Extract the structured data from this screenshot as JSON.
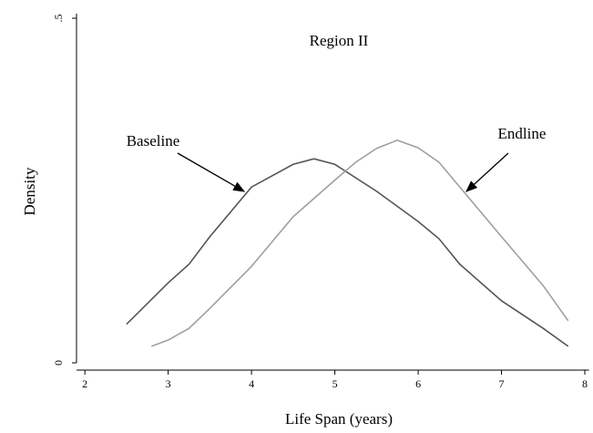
{
  "chart_data": {
    "type": "line",
    "title": "Region II",
    "xlabel": "Life Span (years)",
    "ylabel": "Density",
    "xlim": [
      1.9,
      8.05
    ],
    "ylim": [
      0,
      0.5
    ],
    "xticks": [
      2,
      3,
      4,
      5,
      6,
      7,
      8
    ],
    "yticks": [
      0,
      {
        "value": 0.5,
        "label": ".5"
      }
    ],
    "annotations": [
      "Baseline",
      "Endline"
    ],
    "series": [
      {
        "name": "Baseline",
        "color": "#555555",
        "x": [
          2.5,
          3.0,
          3.25,
          3.5,
          4.0,
          4.5,
          4.75,
          5.0,
          5.5,
          6.0,
          6.25,
          6.5,
          7.0,
          7.5,
          7.8
        ],
        "values": [
          0.056,
          0.116,
          0.143,
          0.183,
          0.255,
          0.288,
          0.296,
          0.288,
          0.249,
          0.205,
          0.18,
          0.143,
          0.09,
          0.05,
          0.024
        ]
      },
      {
        "name": "Endline",
        "color": "#a0a0a0",
        "x": [
          2.8,
          3.0,
          3.25,
          3.5,
          4.0,
          4.5,
          5.0,
          5.25,
          5.5,
          5.75,
          6.0,
          6.25,
          6.5,
          7.0,
          7.5,
          7.8
        ],
        "values": [
          0.024,
          0.033,
          0.05,
          0.079,
          0.14,
          0.212,
          0.265,
          0.291,
          0.311,
          0.323,
          0.312,
          0.291,
          0.255,
          0.183,
          0.112,
          0.061
        ]
      }
    ]
  }
}
